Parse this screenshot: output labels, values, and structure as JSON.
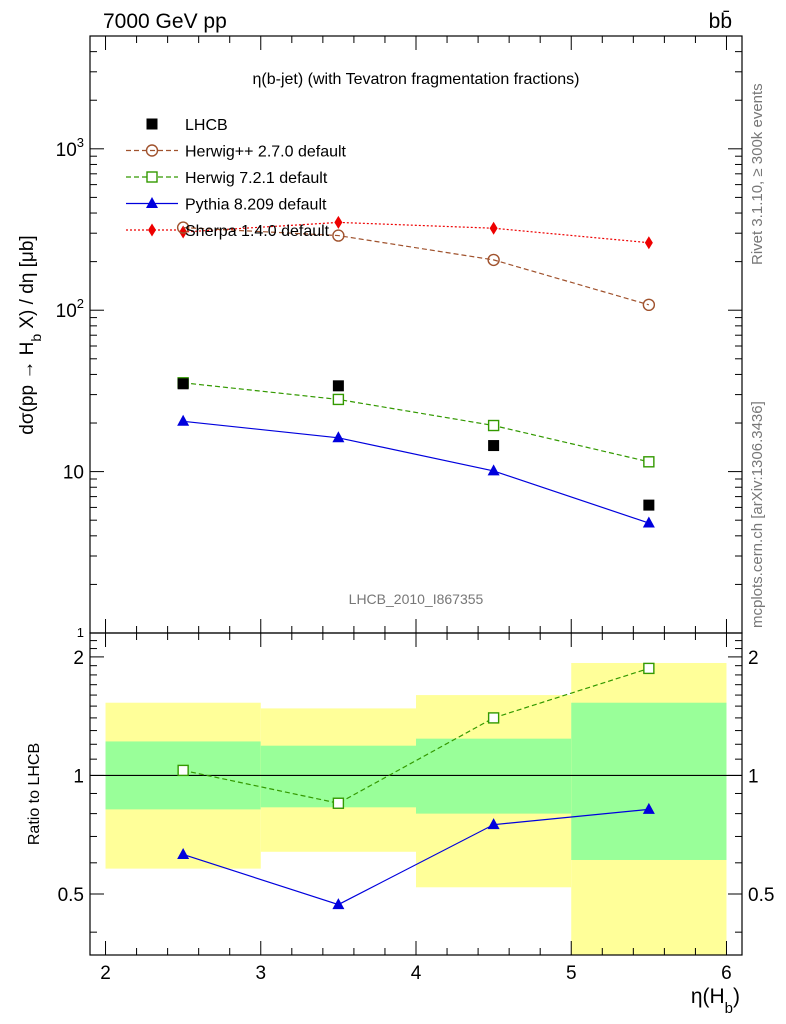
{
  "header": {
    "left": "7000 GeV pp",
    "right": "bb̄"
  },
  "side_text": {
    "rivet": "Rivet 3.1.10, ≥ 300k events",
    "mcplots": "mcplots.cern.ch [arXiv:1306.3436]"
  },
  "chart_data": [
    {
      "type": "scatter",
      "title": "η(b-jet) (with Tevatron fragmentation fractions)",
      "ylabel": "dσ(pp → H_b X) / dη [μb]",
      "ylabel_main": "dσ(pp → H",
      "ylabel_sub": "b",
      "ylabel_tail": " X) / dη [μb]",
      "analysis_label": "LHCB_2010_I867355",
      "yscale": "log",
      "xlim": [
        1.9,
        6.1
      ],
      "ylim": [
        1,
        5000
      ],
      "y_ticklabels": [
        {
          "value": 1,
          "label": "1"
        },
        {
          "value": 10,
          "label": "10"
        },
        {
          "value": 100,
          "label": "10^2"
        },
        {
          "value": 1000,
          "label": "10^3"
        }
      ],
      "x": [
        2.5,
        3.5,
        4.5,
        5.5
      ],
      "x_edges": [
        2,
        3,
        4,
        5,
        6
      ],
      "legend_position": "top-left",
      "series": [
        {
          "name": "LHCB",
          "color": "#000000",
          "marker": "square-filled",
          "line": "none",
          "values": [
            35,
            34,
            14.5,
            6.2
          ]
        },
        {
          "name": "Herwig++ 2.7.0 default",
          "color": "#a0522d",
          "marker": "circle-open",
          "line": "dashed",
          "values": [
            325,
            290,
            205,
            108
          ]
        },
        {
          "name": "Herwig 7.2.1 default",
          "color": "#339900",
          "marker": "square-open",
          "line": "dashed",
          "values": [
            35.5,
            28,
            19.3,
            11.5
          ]
        },
        {
          "name": "Pythia 8.209 default",
          "color": "#0000dd",
          "marker": "triangle-filled",
          "line": "solid",
          "values": [
            20.5,
            16.2,
            10.1,
            4.8
          ]
        },
        {
          "name": "Sherpa 1.4.0 default",
          "color": "#ee0000",
          "marker": "diamond-filled",
          "line": "dotted",
          "values": [
            305,
            350,
            322,
            262
          ]
        }
      ]
    },
    {
      "type": "scatter",
      "ylabel": "Ratio to LHCB",
      "xlabel": "η(H_b)",
      "xlabel_main": "η(H",
      "xlabel_sub": "b",
      "xlabel_tail": ")",
      "yscale": "log",
      "xlim": [
        1.9,
        6.1
      ],
      "ylim": [
        0.35,
        2.3
      ],
      "x_ticklabels": [
        "2",
        "3",
        "4",
        "5",
        "6"
      ],
      "y_ticklabels": [
        {
          "value": 0.5,
          "label": "0.5"
        },
        {
          "value": 1,
          "label": "1"
        },
        {
          "value": 2,
          "label": "2"
        }
      ],
      "reference_line": 1,
      "bands": [
        {
          "xmin": 2,
          "xmax": 3,
          "inner": [
            0.82,
            1.22
          ],
          "outer": [
            0.58,
            1.53
          ]
        },
        {
          "xmin": 3,
          "xmax": 4,
          "inner": [
            0.83,
            1.19
          ],
          "outer": [
            0.64,
            1.48
          ]
        },
        {
          "xmin": 4,
          "xmax": 5,
          "inner": [
            0.8,
            1.24
          ],
          "outer": [
            0.52,
            1.6
          ]
        },
        {
          "xmin": 5,
          "xmax": 6,
          "inner": [
            0.61,
            1.53
          ],
          "outer": [
            0.35,
            1.93
          ]
        }
      ],
      "band_colors": {
        "inner": "#99ff99",
        "outer": "#ffff99"
      },
      "series": [
        {
          "name": "Herwig 7.2.1 default",
          "color": "#339900",
          "marker": "square-open",
          "line": "dashed",
          "values": [
            1.03,
            0.85,
            1.4,
            1.87
          ]
        },
        {
          "name": "Pythia 8.209 default",
          "color": "#0000dd",
          "marker": "triangle-filled",
          "line": "solid",
          "values": [
            0.63,
            0.47,
            0.75,
            0.82
          ]
        }
      ]
    }
  ]
}
